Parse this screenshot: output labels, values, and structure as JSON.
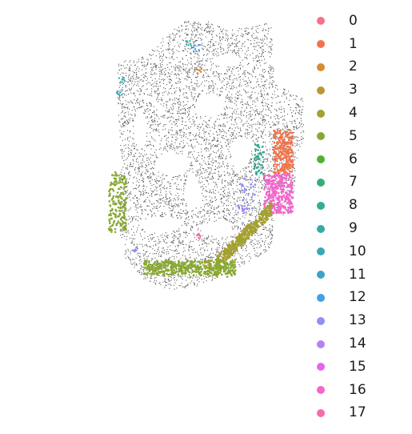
{
  "chart_data": {
    "type": "scatter",
    "title": "",
    "xlabel": "",
    "ylabel": "",
    "axes_visible": false,
    "grid": false,
    "background_points_color": "#555555",
    "legend_position": "right",
    "legend": [
      {
        "label": "0",
        "color": "#f77189"
      },
      {
        "label": "1",
        "color": "#f0744c"
      },
      {
        "label": "2",
        "color": "#d58c32"
      },
      {
        "label": "3",
        "color": "#bb9832"
      },
      {
        "label": "4",
        "color": "#a4a031"
      },
      {
        "label": "5",
        "color": "#88a931"
      },
      {
        "label": "6",
        "color": "#50b131"
      },
      {
        "label": "7",
        "color": "#34ae78"
      },
      {
        "label": "8",
        "color": "#35ac95"
      },
      {
        "label": "9",
        "color": "#36aaa7"
      },
      {
        "label": "10",
        "color": "#38a8b6"
      },
      {
        "label": "11",
        "color": "#3ba3c8"
      },
      {
        "label": "12",
        "color": "#41a0e8"
      },
      {
        "label": "13",
        "color": "#8f90f2"
      },
      {
        "label": "14",
        "color": "#b880f4"
      },
      {
        "label": "15",
        "color": "#e565ee"
      },
      {
        "label": "16",
        "color": "#f565cc"
      },
      {
        "label": "17",
        "color": "#f66bac"
      }
    ],
    "highlighted_regions": [
      {
        "cluster": "1",
        "description": "right edge upper block"
      },
      {
        "cluster": "16",
        "description": "right edge block below cluster 1"
      },
      {
        "cluster": "4",
        "description": "lower right curved band"
      },
      {
        "cluster": "5",
        "description": "bottom arc and left edge"
      },
      {
        "cluster": "8",
        "description": "small strip near right edge"
      },
      {
        "cluster": "13",
        "description": "scattered along inner right"
      }
    ]
  }
}
